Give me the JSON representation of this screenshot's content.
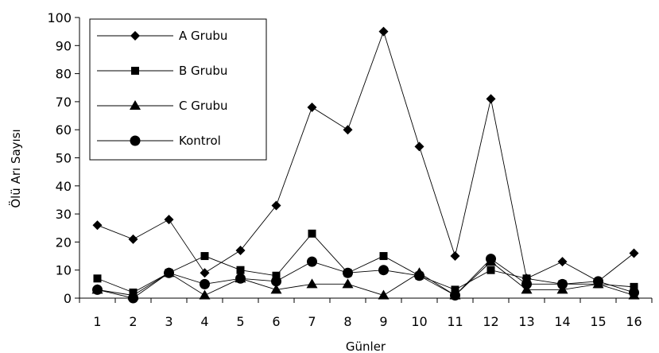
{
  "chart_data": {
    "type": "line",
    "title": "",
    "xlabel": "Günler",
    "ylabel": "Ölü Arı Sayısı",
    "ylim": [
      0,
      100
    ],
    "yticks": [
      0,
      10,
      20,
      30,
      40,
      50,
      60,
      70,
      80,
      90,
      100
    ],
    "x": [
      1,
      2,
      3,
      4,
      5,
      6,
      7,
      8,
      9,
      10,
      11,
      12,
      13,
      14,
      15,
      16
    ],
    "grid": false,
    "legend_position": "top-left",
    "series": [
      {
        "name": "A Grubu",
        "marker": "diamond",
        "values": [
          26,
          21,
          28,
          9,
          17,
          33,
          68,
          60,
          95,
          54,
          15,
          71,
          7,
          13,
          6,
          16
        ]
      },
      {
        "name": "B Grubu",
        "marker": "square",
        "values": [
          7,
          2,
          9,
          15,
          10,
          8,
          23,
          9,
          15,
          8,
          3,
          10,
          7,
          5,
          5,
          4
        ]
      },
      {
        "name": "C Grubu",
        "marker": "triangle",
        "values": [
          3,
          1,
          9,
          1,
          7,
          3,
          5,
          5,
          1,
          9,
          1,
          13,
          3,
          3,
          5,
          1
        ]
      },
      {
        "name": "Kontrol",
        "marker": "circle",
        "values": [
          3,
          0,
          9,
          5,
          7,
          6,
          13,
          9,
          10,
          8,
          1,
          14,
          5,
          5,
          6,
          2
        ]
      }
    ]
  }
}
